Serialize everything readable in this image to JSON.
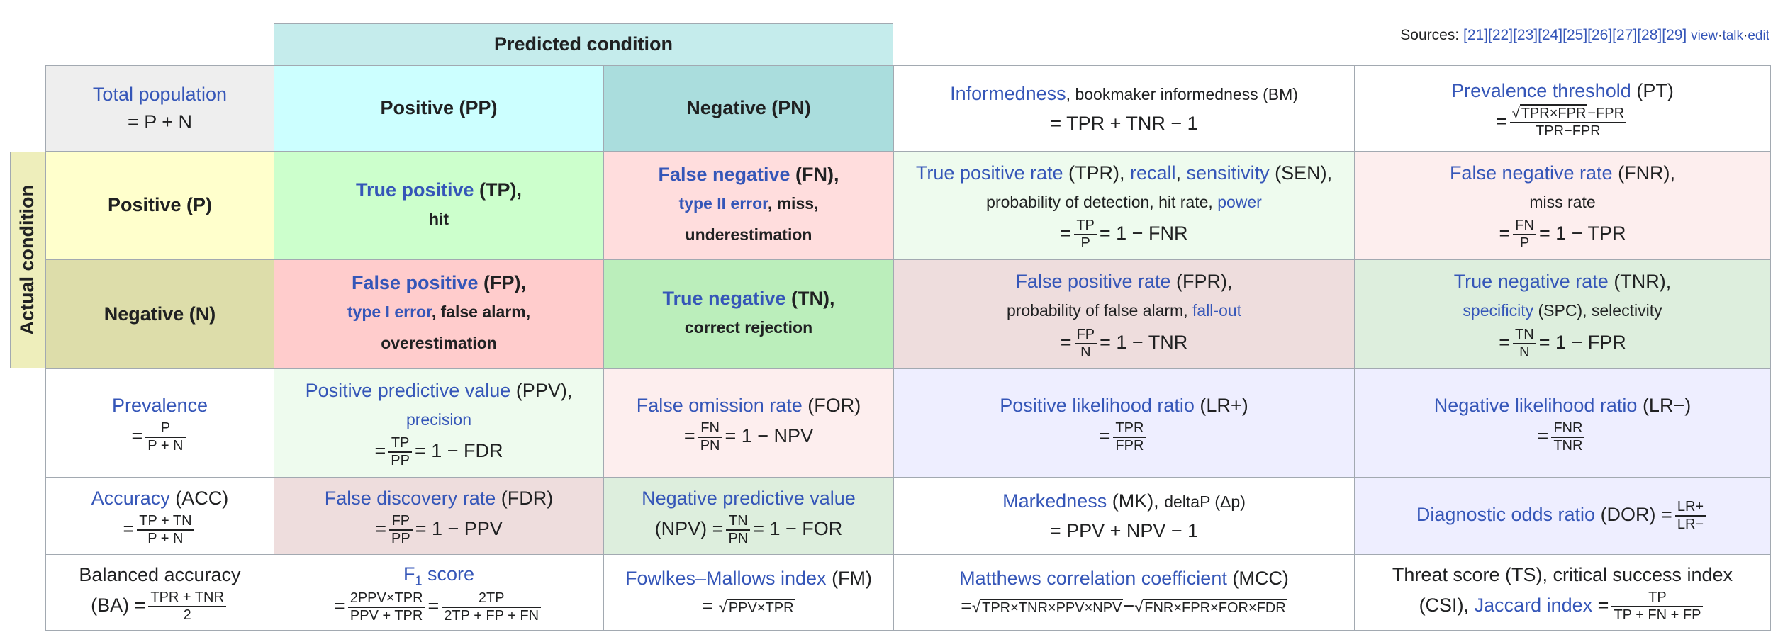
{
  "sources": {
    "label": "Sources:",
    "refs": "[21][22][23][24][25][26][27][28][29]",
    "view": "view",
    "talk": "talk",
    "edit": "edit",
    "sep": "·"
  },
  "header": {
    "predicted": "Predicted condition",
    "actual": "Actual condition"
  },
  "colors": {
    "link": "#3556b8",
    "border": "#a2a9b1"
  },
  "total": {
    "link": "Total population",
    "formula": "= P + N"
  },
  "pp": "Positive (PP)",
  "pn": "Negative (PN)",
  "bm": {
    "link": "Informedness",
    "rest": ", bookmaker informedness (BM)",
    "formula": "= TPR + TNR − 1"
  },
  "pt": {
    "link": "Prevalence threshold",
    "abbr": " (PT)",
    "eq": "=",
    "num_rad": "TPR×FPR",
    "num_rest": "−FPR",
    "den": "TPR−FPR"
  },
  "p": "Positive (P)",
  "n": "Negative (N)",
  "tp": {
    "link": "True positive",
    "abbr": " (TP),",
    "l2": "hit"
  },
  "fn": {
    "link": "False negative",
    "abbr": " (FN),",
    "l2_link": "type II error",
    "l2_rest": ", miss,",
    "l3": "underestimation"
  },
  "tpr": {
    "l1_link1": "True positive rate",
    "l1_t1": " (TPR), ",
    "l1_link2": "recall",
    "l1_t2": ", ",
    "l1_link3": "sensitivity",
    "l1_t3": " (SEN),",
    "l2_text": "probability of detection, hit rate, ",
    "l2_link": "power",
    "eq": "=",
    "num": "TP",
    "den": "P",
    "rest": "= 1 − FNR"
  },
  "fnr": {
    "link": "False negative rate",
    "abbr": " (FNR),",
    "l2": "miss rate",
    "eq": "=",
    "num": "FN",
    "den": "P",
    "rest": "= 1 − TPR"
  },
  "fp": {
    "link": "False positive",
    "abbr": " (FP),",
    "l2_link": "type I error",
    "l2_rest": ", false alarm,",
    "l3": "overestimation"
  },
  "tn": {
    "link": "True negative",
    "abbr": " (TN),",
    "l2": "correct rejection"
  },
  "fpr": {
    "link": "False positive rate",
    "abbr": " (FPR),",
    "l2_text": "probability of false alarm, ",
    "l2_link": "fall-out",
    "eq": "=",
    "num": "FP",
    "den": "N",
    "rest": "= 1 − TNR"
  },
  "tnr": {
    "link": "True negative rate",
    "abbr": " (TNR),",
    "l2_link": "specificity",
    "l2_rest": " (SPC), selectivity",
    "eq": "=",
    "num": "TN",
    "den": "N",
    "rest": "= 1 − FPR"
  },
  "prev": {
    "link": "Prevalence",
    "eq": "=",
    "num": "P",
    "den": "P + N"
  },
  "ppv": {
    "link": "Positive predictive value",
    "abbr": " (PPV),",
    "l2_link": "precision",
    "eq": "=",
    "num": "TP",
    "den": "PP",
    "rest": "= 1 − FDR"
  },
  "for": {
    "link": "False omission rate",
    "abbr": " (FOR)",
    "eq": "=",
    "num": "FN",
    "den": "PN",
    "rest": "= 1 − NPV"
  },
  "lrp": {
    "link": "Positive likelihood ratio",
    "abbr": " (LR+)",
    "eq": "=",
    "num": "TPR",
    "den": "FPR"
  },
  "lrn": {
    "link": "Negative likelihood ratio",
    "abbr": " (LR−)",
    "eq": "=",
    "num": "FNR",
    "den": "TNR"
  },
  "acc": {
    "link": "Accuracy",
    "abbr": " (ACC)",
    "eq": "=",
    "num": "TP + TN",
    "den": "P + N"
  },
  "fdr": {
    "link": "False discovery rate",
    "abbr": " (FDR)",
    "eq": "=",
    "num": "FP",
    "den": "PP",
    "rest": "= 1 − PPV"
  },
  "npv": {
    "link": "Negative predictive value",
    "l2_text": "(NPV) =",
    "num": "TN",
    "den": "PN",
    "rest": "= 1 − FOR"
  },
  "mk": {
    "link": "Markedness",
    "abbr": " (MK), ",
    "small": "deltaP (Δp)",
    "formula": "= PPV + NPV − 1"
  },
  "dor": {
    "link": "Diagnostic odds ratio",
    "abbr": " (DOR) =",
    "num": "LR+",
    "den": "LR−"
  },
  "ba": {
    "l1": "Balanced accuracy",
    "l2_text": "(BA) =",
    "num": "TPR + TNR",
    "den": "2"
  },
  "f1": {
    "link_main": "F",
    "link_sub": "1",
    "link_rest": " score",
    "eq": "=",
    "num1": "2PPV×TPR",
    "den1": "PPV + TPR",
    "eq2": "=",
    "num2": "2TP",
    "den2": "2TP + FP + FN"
  },
  "fm": {
    "link": "Fowlkes–Mallows index",
    "abbr": " (FM)",
    "eq": "=",
    "root_sign": "√",
    "rad": "PPV×TPR"
  },
  "mcc": {
    "link": "Matthews correlation coefficient",
    "abbr": " (MCC)",
    "eq": "=",
    "root_sign": "√",
    "rad1": "TPR×TNR×PPV×NPV",
    "minus": "−",
    "rad2": "FNR×FPR×FOR×FDR"
  },
  "ts": {
    "l1": "Threat score (TS), critical success index",
    "l2_text": "(CSI), ",
    "l2_link": "Jaccard index",
    "eq": " =",
    "num": "TP",
    "den": "TP + FN + FP"
  }
}
